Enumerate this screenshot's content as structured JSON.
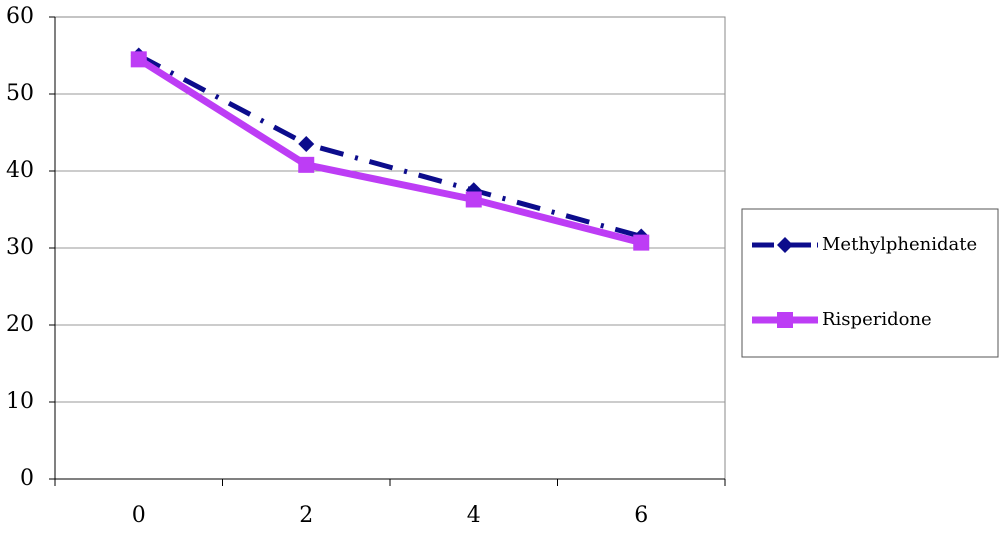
{
  "chart_data": {
    "type": "line",
    "categories": [
      "0",
      "2",
      "4",
      "6"
    ],
    "series": [
      {
        "name": "Methylphenidate",
        "color": "#0c0c8c",
        "line_style": "dashdot",
        "marker": "diamond",
        "values": [
          55,
          43.5,
          37.5,
          31.5
        ]
      },
      {
        "name": "Risperidone",
        "color": "#bd3df5",
        "line_style": "solid",
        "marker": "square",
        "values": [
          54.5,
          40.8,
          36.3,
          30.7
        ]
      }
    ],
    "ylim": [
      0,
      60
    ],
    "yticks": [
      0,
      10,
      20,
      30,
      40,
      50,
      60
    ],
    "grid": true,
    "legend": "right"
  }
}
